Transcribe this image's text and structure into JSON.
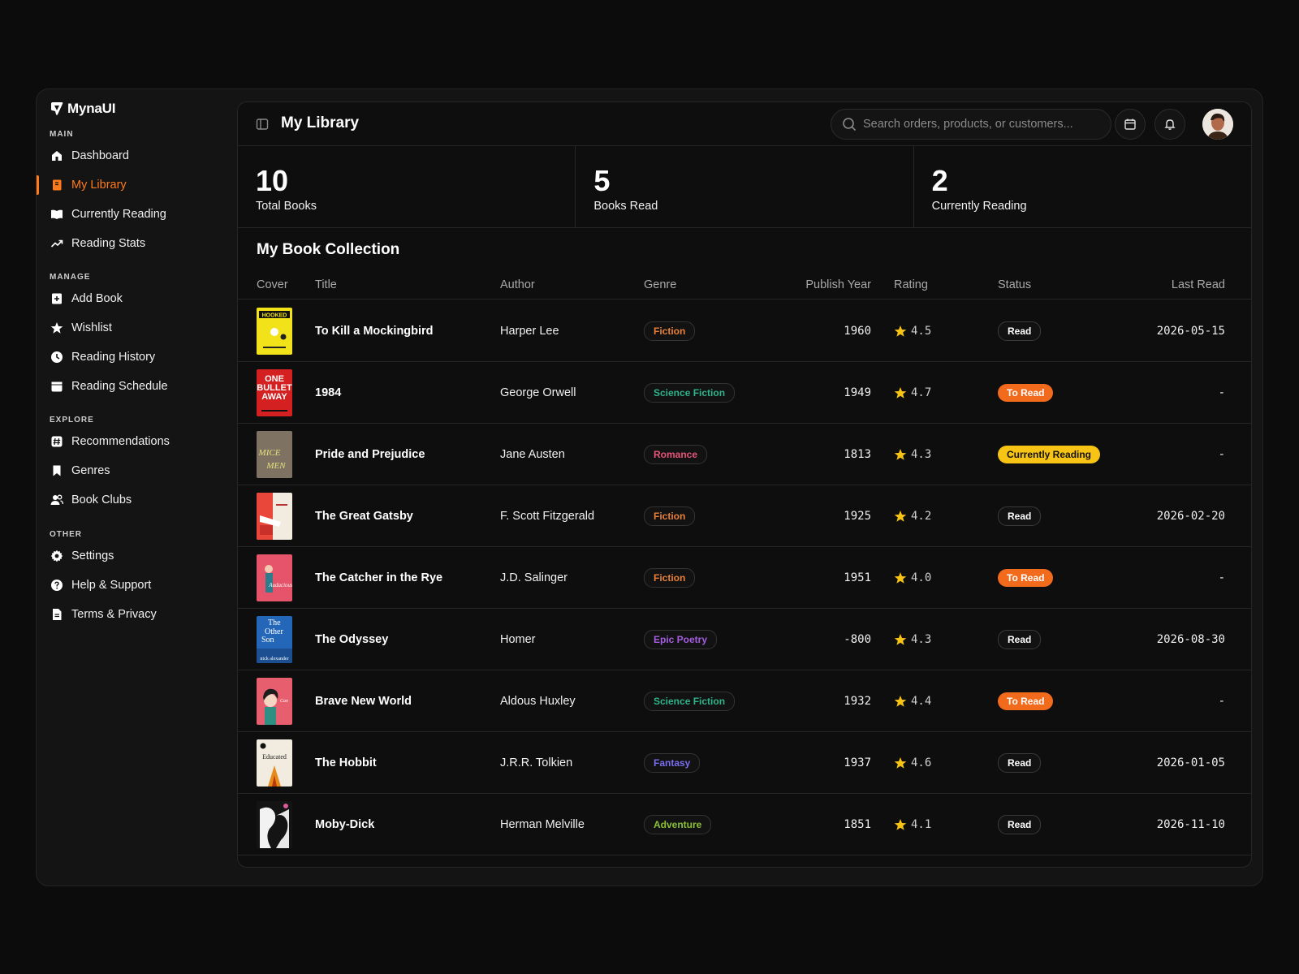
{
  "brand": {
    "name": "MynaUI"
  },
  "sidebar": {
    "sections": [
      {
        "heading": "MAIN",
        "items": [
          {
            "label": "Dashboard",
            "icon": "home-icon"
          },
          {
            "label": "My Library",
            "icon": "book-icon",
            "active": true
          },
          {
            "label": "Currently Reading",
            "icon": "open-book-icon"
          },
          {
            "label": "Reading Stats",
            "icon": "trending-up-icon"
          }
        ]
      },
      {
        "heading": "MANAGE",
        "items": [
          {
            "label": "Add Book",
            "icon": "plus-square-icon"
          },
          {
            "label": "Wishlist",
            "icon": "star-icon"
          },
          {
            "label": "Reading History",
            "icon": "clock-icon"
          },
          {
            "label": "Reading Schedule",
            "icon": "calendar-icon"
          }
        ]
      },
      {
        "heading": "EXPLORE",
        "items": [
          {
            "label": "Recommendations",
            "icon": "hash-icon"
          },
          {
            "label": "Genres",
            "icon": "bookmark-icon"
          },
          {
            "label": "Book Clubs",
            "icon": "users-icon"
          }
        ]
      },
      {
        "heading": "OTHER",
        "items": [
          {
            "label": "Settings",
            "icon": "gear-icon"
          },
          {
            "label": "Help & Support",
            "icon": "help-circle-icon"
          },
          {
            "label": "Terms & Privacy",
            "icon": "document-icon"
          }
        ]
      }
    ]
  },
  "header": {
    "title": "My Library",
    "search_placeholder": "Search orders, products, or customers..."
  },
  "stats": [
    {
      "value": "10",
      "label": "Total Books"
    },
    {
      "value": "5",
      "label": "Books Read"
    },
    {
      "value": "2",
      "label": "Currently Reading"
    }
  ],
  "collection": {
    "title": "My Book Collection",
    "columns": [
      "Cover",
      "Title",
      "Author",
      "Genre",
      "Publish Year",
      "Rating",
      "Status",
      "Last Read"
    ],
    "rows": [
      {
        "cover_text": "HOOKED",
        "cover_color": "#f2e21a",
        "title": "To Kill a Mockingbird",
        "author": "Harper Lee",
        "genre": "Fiction",
        "genre_color": "#e8803a",
        "year": "1960",
        "rating": "4.5",
        "status": "Read",
        "last_read": "2026-05-15"
      },
      {
        "cover_text": "ONE BULLET AWAY",
        "cover_color": "#d42020",
        "title": "1984",
        "author": "George Orwell",
        "genre": "Science Fiction",
        "genre_color": "#2fb38a",
        "year": "1949",
        "rating": "4.7",
        "status": "To Read",
        "last_read": "-"
      },
      {
        "cover_text": "MICE MEN",
        "cover_color": "#8e8270",
        "title": "Pride and Prejudice",
        "author": "Jane Austen",
        "genre": "Romance",
        "genre_color": "#e5557a",
        "year": "1813",
        "rating": "4.3",
        "status": "Currently Reading",
        "last_read": "-"
      },
      {
        "cover_text": "",
        "cover_color": "#e8473a",
        "title": "The Great Gatsby",
        "author": "F. Scott Fitzgerald",
        "genre": "Fiction",
        "genre_color": "#e8803a",
        "year": "1925",
        "rating": "4.2",
        "status": "Read",
        "last_read": "2026-02-20"
      },
      {
        "cover_text": "",
        "cover_color": "#e5546a",
        "title": "The Catcher in the Rye",
        "author": "J.D. Salinger",
        "genre": "Fiction",
        "genre_color": "#e8803a",
        "year": "1951",
        "rating": "4.0",
        "status": "To Read",
        "last_read": "-"
      },
      {
        "cover_text": "The Other Son",
        "cover_color": "#2467b8",
        "title": "The Odyssey",
        "author": "Homer",
        "genre": "Epic Poetry",
        "genre_color": "#a55ee0",
        "year": "-800",
        "rating": "4.3",
        "status": "Read",
        "last_read": "2026-08-30"
      },
      {
        "cover_text": "",
        "cover_color": "#e75e6e",
        "title": "Brave New World",
        "author": "Aldous Huxley",
        "genre": "Science Fiction",
        "genre_color": "#2fb38a",
        "year": "1932",
        "rating": "4.4",
        "status": "To Read",
        "last_read": "-"
      },
      {
        "cover_text": "Educated",
        "cover_color": "#f2ece0",
        "title": "The Hobbit",
        "author": "J.R.R. Tolkien",
        "genre": "Fantasy",
        "genre_color": "#7a6ef0",
        "year": "1937",
        "rating": "4.6",
        "status": "Read",
        "last_read": "2026-01-05"
      },
      {
        "cover_text": "",
        "cover_color": "#141414",
        "title": "Moby-Dick",
        "author": "Herman Melville",
        "genre": "Adventure",
        "genre_color": "#8cbf3a",
        "year": "1851",
        "rating": "4.1",
        "status": "Read",
        "last_read": "2026-11-10"
      }
    ]
  },
  "colors": {
    "accent": "#ff7a1a",
    "star": "#f7c315",
    "status_to_read": "#f26a1b",
    "status_current": "#f7c315"
  }
}
